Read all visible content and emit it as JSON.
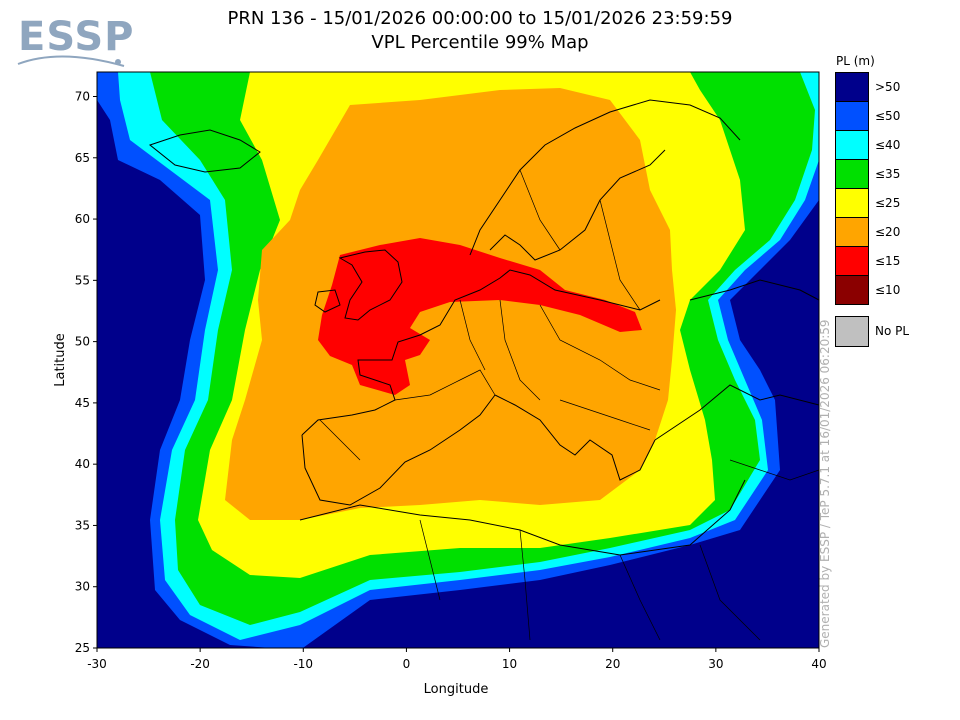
{
  "logo": {
    "text": "ESSP"
  },
  "title": {
    "line1": "PRN 136 - 15/01/2026 00:00:00 to 15/01/2026 23:59:59",
    "line2": "VPL Percentile 99% Map"
  },
  "axes": {
    "xlabel": "Longitude",
    "ylabel": "Latitude",
    "xticks": [
      "-30",
      "-20",
      "-10",
      "0",
      "10",
      "20",
      "30",
      "40"
    ],
    "yticks": [
      "70",
      "65",
      "60",
      "55",
      "50",
      "45",
      "40",
      "35",
      "30",
      "25"
    ],
    "lon_range": [
      -30,
      40
    ],
    "lat_range": [
      25,
      72
    ]
  },
  "legend": {
    "title": "PL (m)",
    "items": [
      {
        "label": ">50",
        "color": "#00008b"
      },
      {
        "label": "≤50",
        "color": "#0050ff"
      },
      {
        "label": "≤40",
        "color": "#00ffff"
      },
      {
        "label": "≤35",
        "color": "#00e000"
      },
      {
        "label": "≤25",
        "color": "#ffff00"
      },
      {
        "label": "≤20",
        "color": "#ffa500"
      },
      {
        "label": "≤15",
        "color": "#ff0000"
      },
      {
        "label": "≤10",
        "color": "#8b0000"
      }
    ],
    "nopl": {
      "label": "No PL",
      "color": "#c0c0c0"
    }
  },
  "credit": "Generated by ESSP / TeP 5.7.1 at 16/01/2026 06:20:59"
}
